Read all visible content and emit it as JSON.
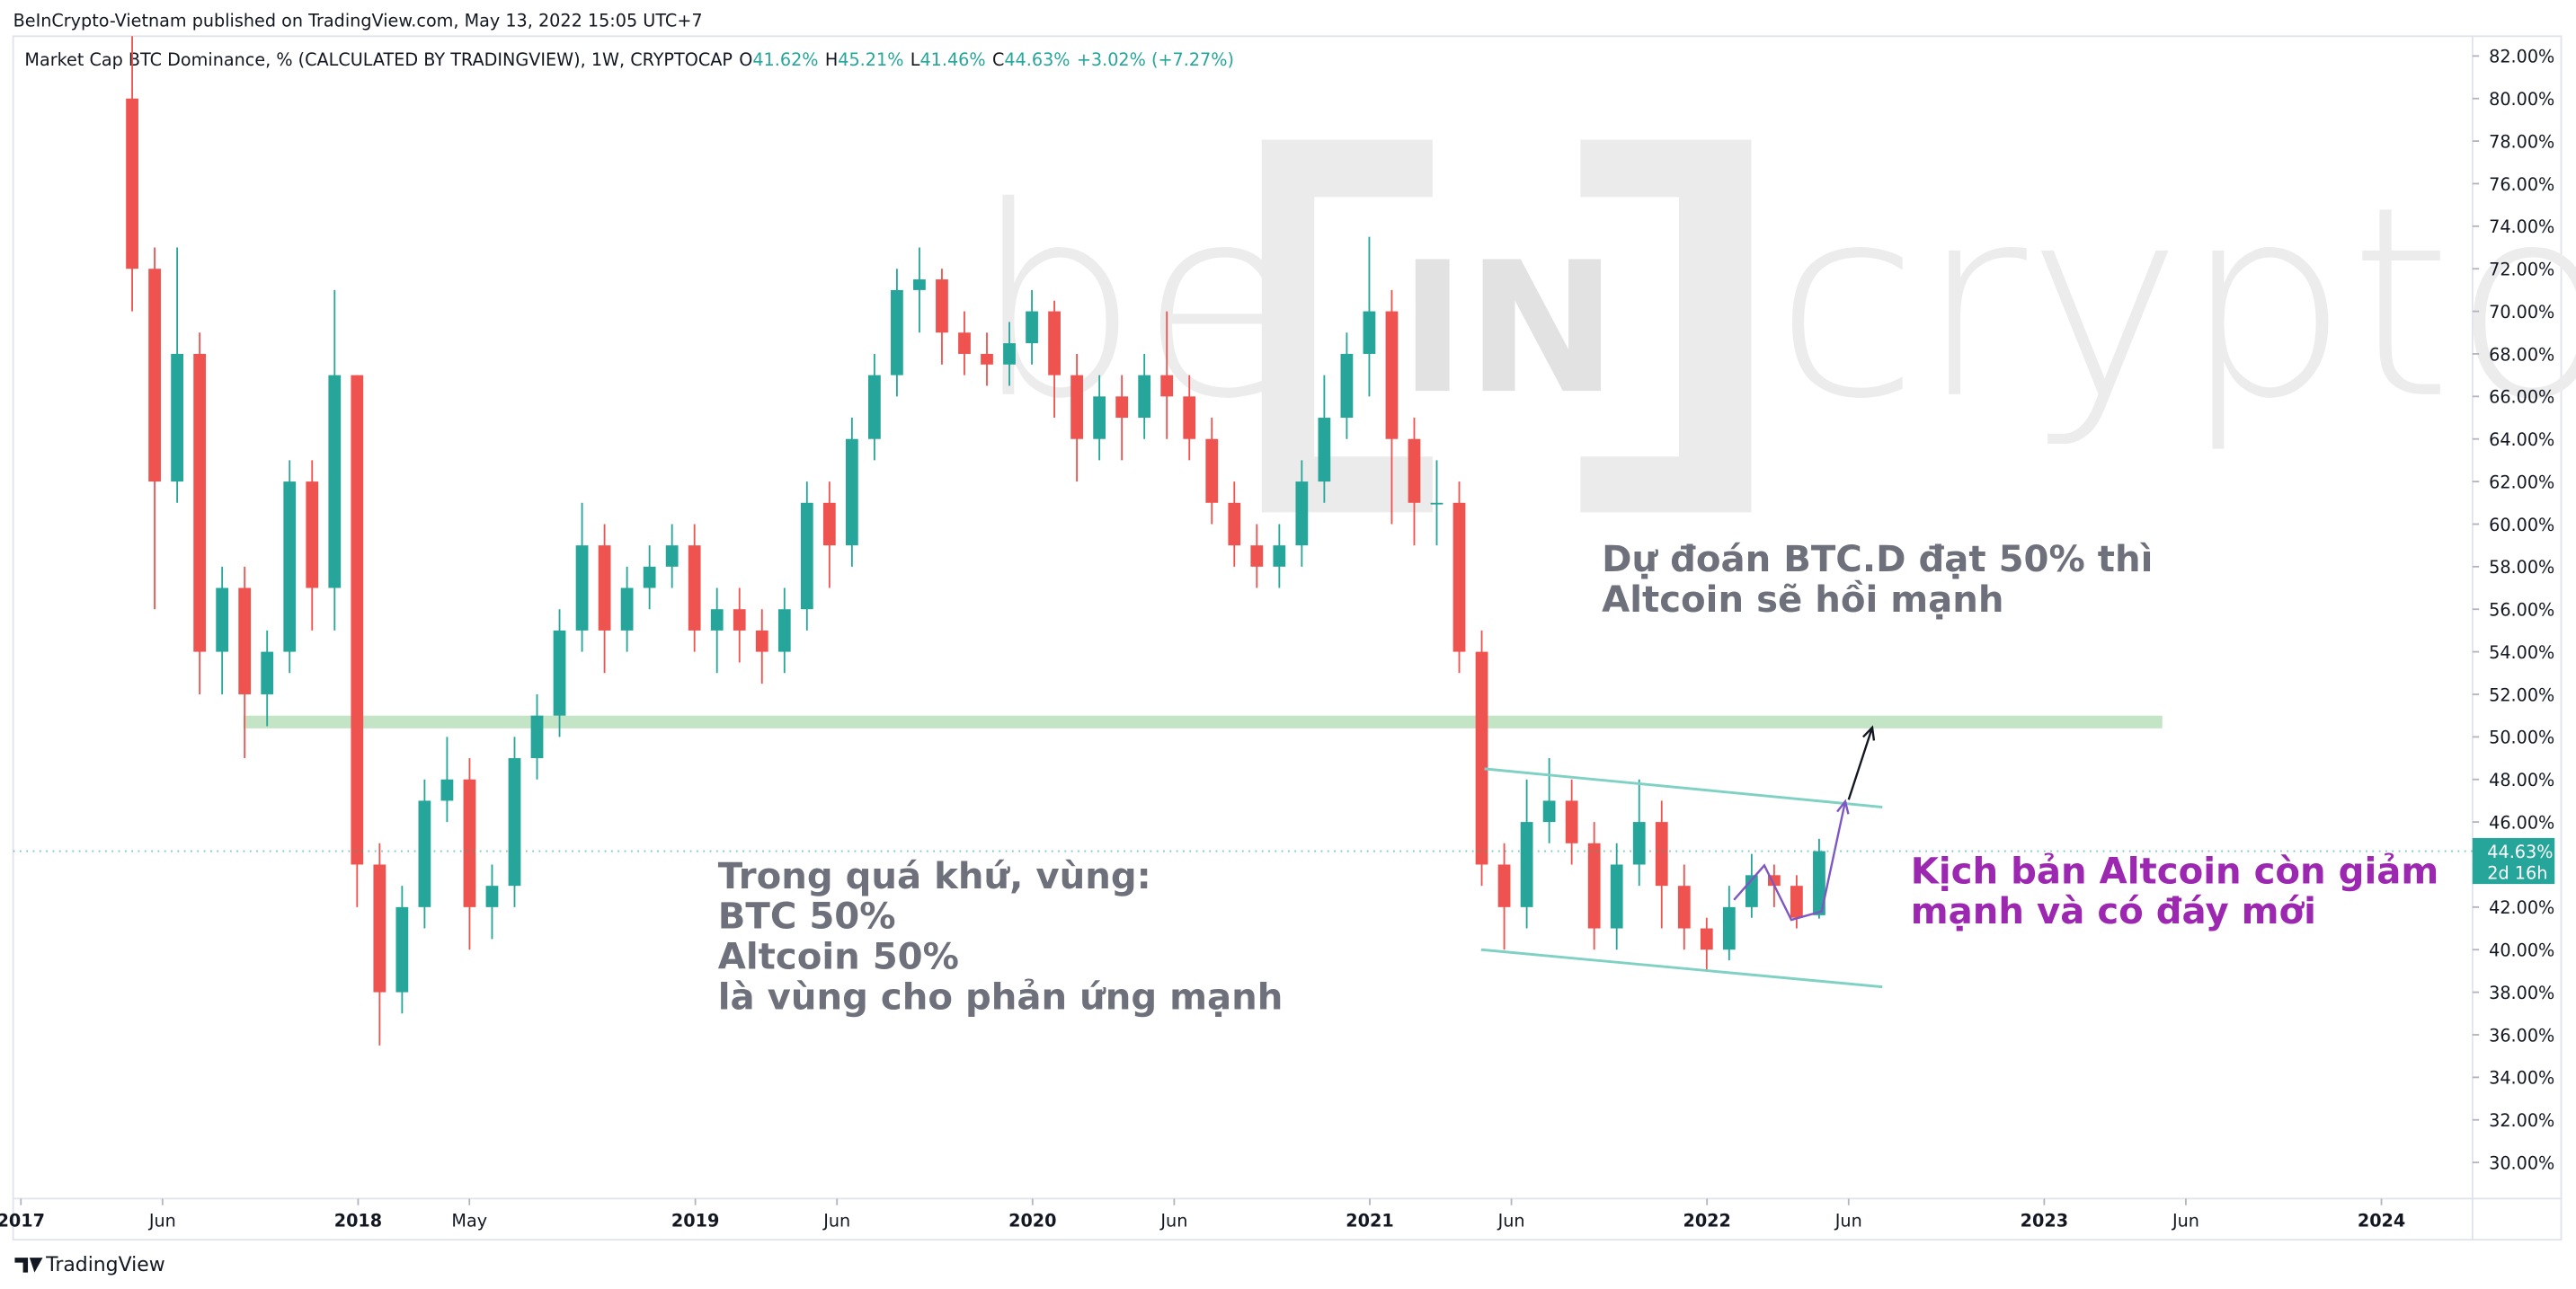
{
  "header": {
    "published": "BeInCrypto-Vietnam published on TradingView.com, May 13, 2022 15:05 UTC+7",
    "symbol": "Market Cap BTC Dominance, % (CALCULATED BY TRADINGVIEW), 1W, CRYPTOCAP",
    "ohlc": [
      {
        "label": "O",
        "value": "41.62%"
      },
      {
        "label": "H",
        "value": "45.21%"
      },
      {
        "label": "L",
        "value": "41.46%"
      },
      {
        "label": "C",
        "value": "44.63%"
      }
    ],
    "change": "+3.02% (+7.27%)"
  },
  "watermark": {
    "left": "be",
    "middle": "IN",
    "right": "crypto"
  },
  "footer": "TradingView",
  "chart_data": {
    "type": "candlestick",
    "up_color": "#26a69a",
    "down_color": "#ef5350",
    "x": [
      2017.33,
      2017.3967,
      2017.4634,
      2017.5301,
      2017.5968,
      2017.6635,
      2017.7302,
      2017.7969,
      2017.8636,
      2017.9303,
      2017.997,
      2018.0637,
      2018.1304,
      2018.1971,
      2018.2638,
      2018.3305,
      2018.3972,
      2018.4639,
      2018.5306,
      2018.5973,
      2018.664,
      2018.7307,
      2018.7974,
      2018.8641,
      2018.9308,
      2018.9975,
      2019.0642,
      2019.1309,
      2019.1976,
      2019.2643,
      2019.331,
      2019.3977,
      2019.4644,
      2019.5311,
      2019.5978,
      2019.6645,
      2019.7312,
      2019.7979,
      2019.8646,
      2019.9313,
      2019.998,
      2020.0647,
      2020.1314,
      2020.1981,
      2020.2648,
      2020.3315,
      2020.3982,
      2020.4649,
      2020.5316,
      2020.5983,
      2020.665,
      2020.7317,
      2020.7984,
      2020.8651,
      2020.9318,
      2020.9985,
      2021.0652,
      2021.1319,
      2021.1986,
      2021.2653,
      2021.332,
      2021.3987,
      2021.4654,
      2021.5321,
      2021.5988,
      2021.6655,
      2021.7322,
      2021.7989,
      2021.8656,
      2021.9323,
      2021.999,
      2022.0657,
      2022.1324,
      2022.1991,
      2022.2658,
      2022.3325
    ],
    "open": [
      80,
      72,
      62,
      68,
      54,
      57,
      52,
      54,
      62,
      57,
      67,
      44,
      38,
      42,
      47,
      48,
      42,
      43,
      49,
      51,
      55,
      59,
      55,
      57,
      58,
      59,
      55,
      56,
      55,
      54,
      56,
      61,
      59,
      64,
      67,
      71,
      71.5,
      69,
      68,
      67.5,
      68.5,
      70,
      67,
      64,
      66,
      65,
      67,
      66,
      64,
      61,
      59,
      58,
      59,
      62,
      65,
      68,
      70,
      64,
      61,
      61,
      54,
      44,
      42,
      46,
      47,
      45,
      41,
      44,
      46,
      43,
      41,
      40,
      42,
      43.5,
      43,
      41.62
    ],
    "high": [
      83,
      73,
      73,
      69,
      58,
      58,
      55,
      63,
      63,
      71,
      67,
      45,
      43,
      48,
      50,
      49,
      44,
      50,
      52,
      56,
      61,
      60,
      58,
      59,
      60,
      60,
      57,
      57,
      56,
      57,
      62,
      62,
      65,
      68,
      72,
      73,
      72,
      70,
      69,
      69.5,
      71,
      70.5,
      68,
      67,
      67,
      68,
      70,
      67,
      65,
      62,
      60,
      60,
      63,
      67,
      69,
      73.5,
      71,
      65,
      63,
      62,
      55,
      45,
      48,
      49,
      48,
      46,
      45,
      48,
      47,
      44,
      41.5,
      43,
      44.5,
      44,
      43.5,
      45.21
    ],
    "low": [
      70,
      56,
      61,
      52,
      52,
      49,
      50.5,
      53,
      55,
      55,
      42,
      35.5,
      37,
      41,
      46,
      40,
      40.5,
      42,
      48,
      50,
      54,
      53,
      54,
      56,
      57,
      54,
      53,
      53.5,
      52.5,
      53,
      55,
      57,
      58,
      63,
      66,
      69,
      67.5,
      67,
      66.5,
      66.5,
      67.5,
      65,
      62,
      63,
      63,
      64,
      64,
      63,
      60,
      58,
      57,
      57,
      58,
      61,
      64,
      66,
      60,
      59,
      59,
      53,
      43,
      40,
      41,
      45,
      44,
      40,
      40,
      43,
      41,
      40,
      39,
      39.5,
      41.5,
      42,
      41,
      41.46
    ],
    "close": [
      72,
      62,
      68,
      54,
      57,
      52,
      54,
      62,
      57,
      67,
      44,
      38,
      42,
      47,
      48,
      42,
      43,
      49,
      51,
      55,
      59,
      55,
      57,
      58,
      59,
      55,
      56,
      55,
      54,
      56,
      61,
      59,
      64,
      67,
      71,
      71.5,
      69,
      68,
      67.5,
      68.5,
      70,
      67,
      64,
      66,
      65,
      67,
      66,
      64,
      61,
      59,
      58,
      59,
      62,
      65,
      68,
      70,
      64,
      61,
      61,
      54,
      44,
      42,
      46,
      47,
      45,
      41,
      44,
      46,
      43,
      41,
      40,
      42,
      43.5,
      43,
      41.5,
      44.63
    ],
    "xlim": [
      2016.977,
      2024.27
    ],
    "ylim": [
      28.3,
      82.93
    ],
    "xticks": [
      {
        "value": 2017,
        "label": "2017"
      },
      {
        "value": 2017.42,
        "label": "Jun"
      },
      {
        "value": 2018,
        "label": "2018"
      },
      {
        "value": 2018.33,
        "label": "May"
      },
      {
        "value": 2019,
        "label": "2019"
      },
      {
        "value": 2019.42,
        "label": "Jun"
      },
      {
        "value": 2020,
        "label": "2020"
      },
      {
        "value": 2020.42,
        "label": "Jun"
      },
      {
        "value": 2021,
        "label": "2021"
      },
      {
        "value": 2021.42,
        "label": "Jun"
      },
      {
        "value": 2022,
        "label": "2022"
      },
      {
        "value": 2022.42,
        "label": "Jun"
      },
      {
        "value": 2023,
        "label": "2023"
      },
      {
        "value": 2023.42,
        "label": "Jun"
      },
      {
        "value": 2024,
        "label": "2024"
      }
    ],
    "yticks": [
      {
        "value": 30,
        "label": "30.00%"
      },
      {
        "value": 32,
        "label": "32.00%"
      },
      {
        "value": 34,
        "label": "34.00%"
      },
      {
        "value": 36,
        "label": "36.00%"
      },
      {
        "value": 38,
        "label": "38.00%"
      },
      {
        "value": 40,
        "label": "40.00%"
      },
      {
        "value": 42,
        "label": "42.00%"
      },
      {
        "value": 44,
        "label": "44.00%"
      },
      {
        "value": 46,
        "label": "46.00%"
      },
      {
        "value": 48,
        "label": "48.00%"
      },
      {
        "value": 50,
        "label": "50.00%"
      },
      {
        "value": 52,
        "label": "52.00%"
      },
      {
        "value": 54,
        "label": "54.00%"
      },
      {
        "value": 56,
        "label": "56.00%"
      },
      {
        "value": 58,
        "label": "58.00%"
      },
      {
        "value": 60,
        "label": "60.00%"
      },
      {
        "value": 62,
        "label": "62.00%"
      },
      {
        "value": 64,
        "label": "64.00%"
      },
      {
        "value": 66,
        "label": "66.00%"
      },
      {
        "value": 68,
        "label": "68.00%"
      },
      {
        "value": 70,
        "label": "70.00%"
      },
      {
        "value": 72,
        "label": "72.00%"
      },
      {
        "value": 74,
        "label": "74.00%"
      },
      {
        "value": 76,
        "label": "76.00%"
      },
      {
        "value": 78,
        "label": "78.00%"
      },
      {
        "value": 80,
        "label": "80.00%"
      },
      {
        "value": 82,
        "label": "82.00%"
      }
    ],
    "last_price": {
      "value": 44.63,
      "label": "44.63%",
      "countdown": "2d 16h",
      "color": "#26a69a"
    },
    "zone": {
      "x": [
        2017.66,
        2023.35
      ],
      "y": [
        50.4,
        51.0
      ],
      "color": "#a5d6a7"
    },
    "channel": {
      "color": "#7fd1c4",
      "upper": {
        "x": [
          2021.34,
          2022.52
        ],
        "y": [
          48.5,
          46.7
        ]
      },
      "lower": {
        "x": [
          2021.33,
          2022.52
        ],
        "y": [
          40.0,
          38.25
        ]
      }
    },
    "arrow_up": {
      "color": "#131722",
      "x": [
        2022.42,
        2022.49
      ],
      "y": [
        47.05,
        50.44
      ]
    },
    "scenario_path": {
      "color": "#7e57c2",
      "x": [
        2022.08,
        2022.17,
        2022.25,
        2022.34,
        2022.41
      ],
      "y": [
        42.34,
        43.96,
        41.4,
        41.8,
        46.97
      ]
    },
    "annotations": [
      {
        "lines": [
          "Dự đoán BTC.D đạt 50% thì",
          "Altcoin sẽ hồi mạnh"
        ]
      },
      {
        "lines": [
          "Trong quá khứ, vùng:",
          "BTC 50%",
          "Altcoin 50%",
          "là vùng cho phản ứng mạnh"
        ]
      },
      {
        "lines": [
          "Kịch bản Altcoin còn giảm",
          "mạnh và có đáy mới"
        ]
      }
    ]
  }
}
